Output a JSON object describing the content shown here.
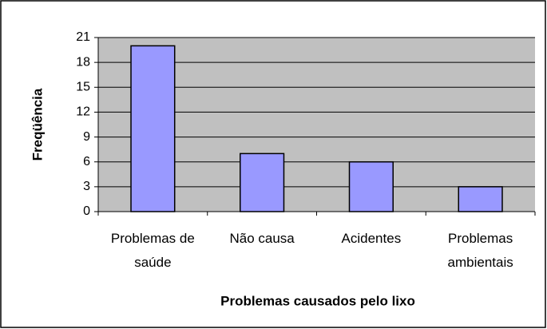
{
  "chart_data": {
    "type": "bar",
    "categories": [
      "Problemas de saúde",
      "Não causa",
      "Acidentes",
      "Problemas ambientais"
    ],
    "values": [
      20,
      7,
      6,
      3
    ],
    "color": "#9999ff",
    "ylim": [
      0,
      21
    ],
    "yticks": [
      0,
      3,
      6,
      9,
      12,
      15,
      18,
      21
    ],
    "grid": true,
    "xlabel": "Problemas causados pelo lixo",
    "ylabel": "Freqüência"
  }
}
